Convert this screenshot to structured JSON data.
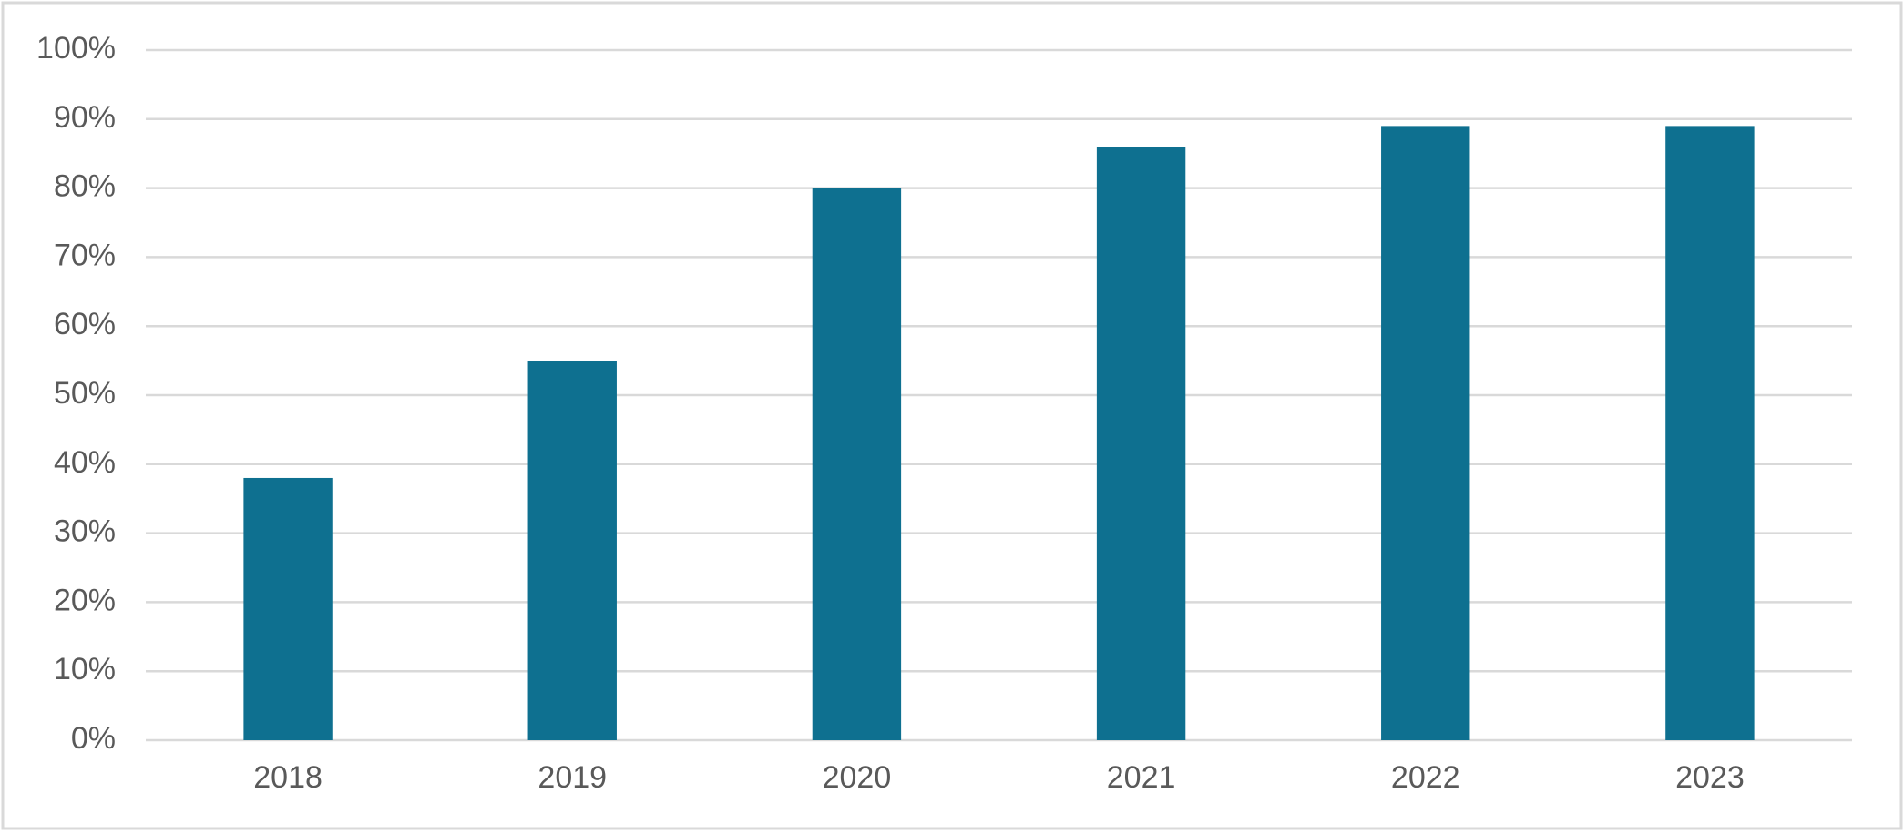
{
  "chart_data": {
    "type": "bar",
    "categories": [
      "2018",
      "2019",
      "2020",
      "2021",
      "2022",
      "2023"
    ],
    "values": [
      38,
      55,
      80,
      86,
      89,
      89
    ],
    "color": "#0e7090",
    "ylim": [
      0,
      100
    ],
    "yticks": [
      {
        "value": 0,
        "label": "0%"
      },
      {
        "value": 10,
        "label": "10%"
      },
      {
        "value": 20,
        "label": "20%"
      },
      {
        "value": 30,
        "label": "30%"
      },
      {
        "value": 40,
        "label": "40%"
      },
      {
        "value": 50,
        "label": "50%"
      },
      {
        "value": 60,
        "label": "60%"
      },
      {
        "value": 70,
        "label": "70%"
      },
      {
        "value": 80,
        "label": "80%"
      },
      {
        "value": 90,
        "label": "90%"
      },
      {
        "value": 100,
        "label": "100%"
      }
    ],
    "grid": true
  }
}
